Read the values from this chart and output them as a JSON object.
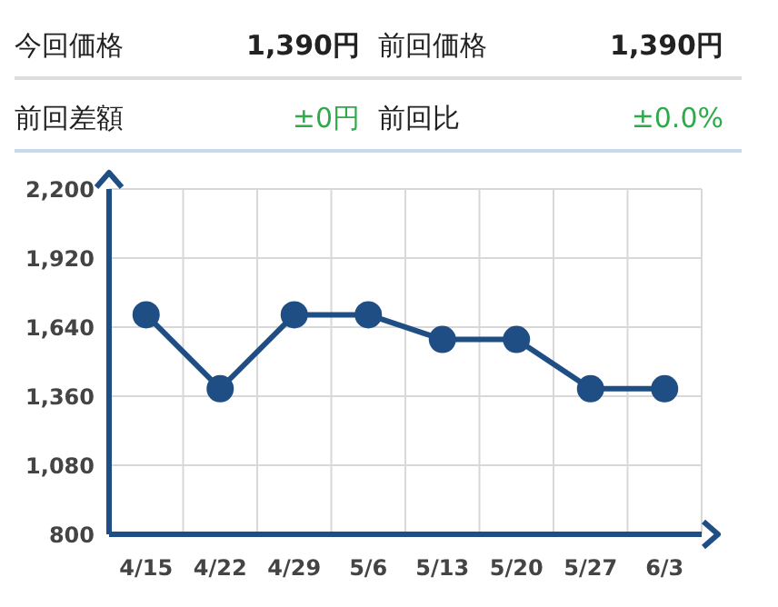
{
  "chart_data": {
    "type": "line",
    "annotations": [
      "今回価格",
      "1,390円",
      "前回価格",
      "1,390円",
      "前回差額",
      "±0円",
      "前回比",
      "±0.0%"
    ],
    "categories": [
      "4/15",
      "4/22",
      "4/29",
      "5/6",
      "5/13",
      "5/20",
      "5/27",
      "6/3"
    ],
    "series": [
      {
        "color": "#1f4e85",
        "values": [
          1690,
          1390,
          1690,
          1690,
          1590,
          1590,
          1390,
          1390
        ]
      }
    ],
    "ylim": [
      800,
      2200
    ],
    "yticks": [
      800,
      {
        "value": 1080,
        "label": "1,080"
      },
      {
        "value": 1360,
        "label": "1,360"
      },
      {
        "value": 1640,
        "label": "1,640"
      },
      {
        "value": 1920,
        "label": "1,920"
      },
      {
        "value": 2200,
        "label": "2,200"
      }
    ],
    "grid": true,
    "marker": "circle",
    "line_style": "solid",
    "legend": false
  }
}
